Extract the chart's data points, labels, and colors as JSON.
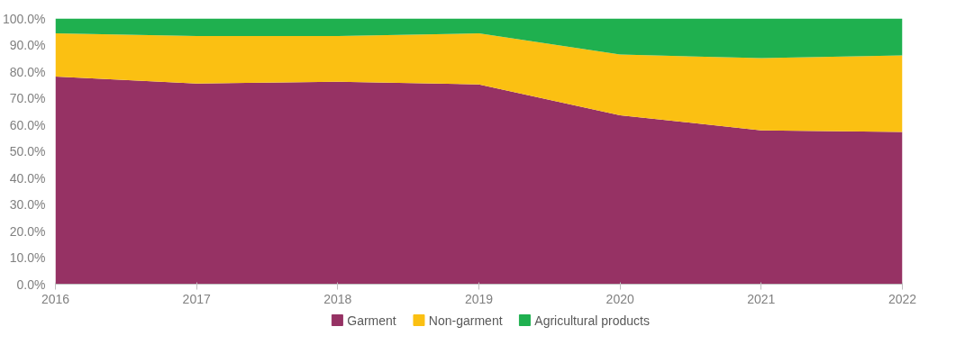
{
  "chart_data": {
    "type": "area",
    "stacked": true,
    "x": [
      2016,
      2017,
      2018,
      2019,
      2020,
      2021,
      2022
    ],
    "xlim": [
      2016,
      2022
    ],
    "xticks": [
      2016,
      2017,
      2018,
      2019,
      2020,
      2021,
      2022
    ],
    "ylim": [
      0,
      100
    ],
    "yticks": [
      {
        "value": 0,
        "label": "0.0%"
      },
      {
        "value": 10,
        "label": "10.0%"
      },
      {
        "value": 20,
        "label": "20.0%"
      },
      {
        "value": 30,
        "label": "30.0%"
      },
      {
        "value": 40,
        "label": "40.0%"
      },
      {
        "value": 50,
        "label": "50.0%"
      },
      {
        "value": 60,
        "label": "60.0%"
      },
      {
        "value": 70,
        "label": "70.0%"
      },
      {
        "value": 80,
        "label": "80.0%"
      },
      {
        "value": 90,
        "label": "90.0%"
      },
      {
        "value": 100,
        "label": "100.0%"
      }
    ],
    "series": [
      {
        "name": "Garment",
        "color": "#963264",
        "values": [
          78.1,
          75.5,
          76.2,
          75.2,
          63.6,
          57.9,
          57.3
        ]
      },
      {
        "name": "Non-garment",
        "color": "#fbc012",
        "values": [
          16.3,
          17.9,
          17.2,
          19.2,
          22.8,
          27.2,
          28.8
        ]
      },
      {
        "name": "Agricultural products",
        "color": "#1fb04f",
        "values": [
          5.6,
          6.6,
          6.6,
          5.6,
          13.6,
          14.9,
          13.9
        ]
      }
    ],
    "grid": false,
    "legend": "bottom"
  }
}
